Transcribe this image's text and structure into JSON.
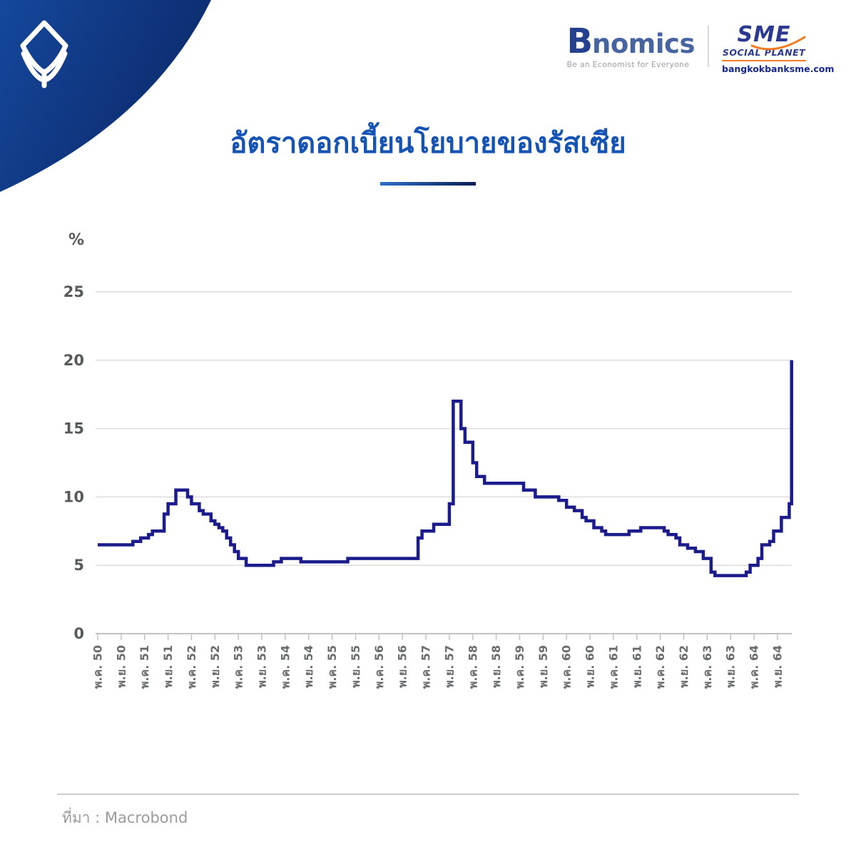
{
  "header": {
    "bnomics": {
      "initial": "B",
      "rest": "nomics",
      "tagline": "Be an Economist for Everyone"
    },
    "sme": {
      "name": "SME",
      "subtitle": "SOCIAL PLANET",
      "url": "bangkokbanksme.com"
    }
  },
  "title": "อัตราดอกเบี้ยนโยบายของรัสเซีย",
  "footer": {
    "source_label": "ที่มา : Macrobond"
  },
  "colors": {
    "corner_gradient_start": "#15479c",
    "corner_gradient_end": "#0c2a6b",
    "title_blue": "#1553b5",
    "line_navy": "#1b1b8c",
    "gridline": "#dcdcdc",
    "axis_line": "#c2c2c2",
    "y_label": "#58595b",
    "x_label": "#6a6b6d",
    "source_gray": "#9b9b9b",
    "sme_orange": "#f47b20"
  },
  "chart_data": {
    "type": "line",
    "title": "อัตราดอกเบี้ยนโยบายของรัสเซีย",
    "unit_label": "%",
    "ylabel": "%",
    "xlabel": "",
    "ylim": [
      0,
      25
    ],
    "yticks": [
      0,
      5,
      10,
      15,
      20,
      25
    ],
    "grid": true,
    "legend": "none",
    "line_color": "#1b1b8c",
    "x_tick_labels": [
      "พ.ค. 50",
      "พ.ย. 50",
      "พ.ค. 51",
      "พ.ย. 51",
      "พ.ค. 52",
      "พ.ย. 52",
      "พ.ค. 53",
      "พ.ย. 53",
      "พ.ค. 54",
      "พ.ย. 54",
      "พ.ค. 55",
      "พ.ย. 55",
      "พ.ค. 56",
      "พ.ย. 56",
      "พ.ค. 57",
      "พ.ย. 57",
      "พ.ค. 58",
      "พ.ย. 58",
      "พ.ค. 59",
      "พ.ย. 59",
      "พ.ค. 60",
      "พ.ย. 60",
      "พ.ค. 61",
      "พ.ย. 61",
      "พ.ค. 62",
      "พ.ย. 62",
      "พ.ค. 63",
      "พ.ย. 63",
      "พ.ค. 64",
      "พ.ย. 64"
    ],
    "months_per_x_tick": 6,
    "step_points_note": "each point = [months after first tick (พ.ค. 50), policy rate %]; value holds until next point (step line)",
    "step_points": [
      [
        0,
        6.5
      ],
      [
        9,
        6.75
      ],
      [
        11,
        7
      ],
      [
        13,
        7.25
      ],
      [
        14,
        7.5
      ],
      [
        17,
        8.75
      ],
      [
        18,
        9.5
      ],
      [
        20,
        10.5
      ],
      [
        23,
        10
      ],
      [
        24,
        9.5
      ],
      [
        26,
        9
      ],
      [
        27,
        8.75
      ],
      [
        29,
        8.25
      ],
      [
        30,
        8
      ],
      [
        31,
        7.75
      ],
      [
        32,
        7.5
      ],
      [
        33,
        7
      ],
      [
        34,
        6.5
      ],
      [
        35,
        6
      ],
      [
        36,
        5.5
      ],
      [
        38,
        5
      ],
      [
        45,
        5.25
      ],
      [
        47,
        5.5
      ],
      [
        52,
        5.25
      ],
      [
        64,
        5.5
      ],
      [
        82,
        7
      ],
      [
        83,
        7.5
      ],
      [
        86,
        8
      ],
      [
        90,
        9.5
      ],
      [
        91,
        17
      ],
      [
        93,
        15
      ],
      [
        94,
        14
      ],
      [
        96,
        12.5
      ],
      [
        97,
        11.5
      ],
      [
        99,
        11
      ],
      [
        109,
        10.5
      ],
      [
        112,
        10
      ],
      [
        118,
        9.75
      ],
      [
        120,
        9.25
      ],
      [
        122,
        9
      ],
      [
        124,
        8.5
      ],
      [
        125,
        8.25
      ],
      [
        127,
        7.75
      ],
      [
        129,
        7.5
      ],
      [
        130,
        7.25
      ],
      [
        136,
        7.5
      ],
      [
        139,
        7.75
      ],
      [
        145,
        7.5
      ],
      [
        146,
        7.25
      ],
      [
        148,
        7
      ],
      [
        149,
        6.5
      ],
      [
        151,
        6.25
      ],
      [
        153,
        6
      ],
      [
        155,
        5.5
      ],
      [
        157,
        4.5
      ],
      [
        158,
        4.25
      ],
      [
        166,
        4.5
      ],
      [
        167,
        5
      ],
      [
        169,
        5.5
      ],
      [
        170,
        6.5
      ],
      [
        172,
        6.75
      ],
      [
        173,
        7.5
      ],
      [
        175,
        8.5
      ],
      [
        177,
        9.5
      ],
      [
        177.6,
        20
      ]
    ]
  }
}
